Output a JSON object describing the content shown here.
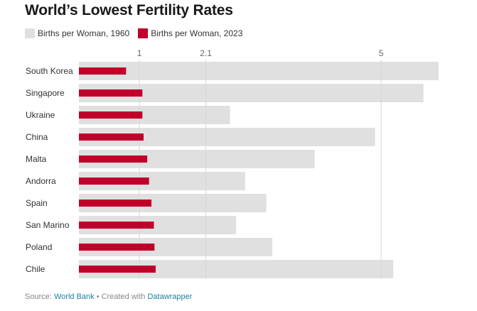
{
  "chart_data": {
    "type": "bar",
    "orientation": "horizontal",
    "title": "World’s Lowest Fertility Rates",
    "xticks": [
      1,
      2.1,
      5
    ],
    "xlim": [
      0,
      6.15
    ],
    "grid": true,
    "legend_position": "top-left",
    "categories": [
      "South Korea",
      "Singapore",
      "Ukraine",
      "China",
      "Malta",
      "Andorra",
      "Spain",
      "San Marino",
      "Poland",
      "Chile"
    ],
    "series": [
      {
        "name": "Births per Woman, 1960",
        "color": "#e0e0e0",
        "values": [
          5.95,
          5.7,
          2.5,
          4.9,
          3.9,
          2.75,
          3.1,
          2.6,
          3.2,
          5.2
        ]
      },
      {
        "name": "Births per Woman, 2023",
        "color": "#c0002a",
        "values": [
          0.78,
          1.05,
          1.05,
          1.07,
          1.13,
          1.16,
          1.2,
          1.24,
          1.25,
          1.27
        ]
      }
    ]
  },
  "footer": {
    "source_label": "Source:",
    "source_link": "World Bank",
    "separator": "•",
    "created_label": "Created with",
    "created_link": "Datawrapper"
  }
}
